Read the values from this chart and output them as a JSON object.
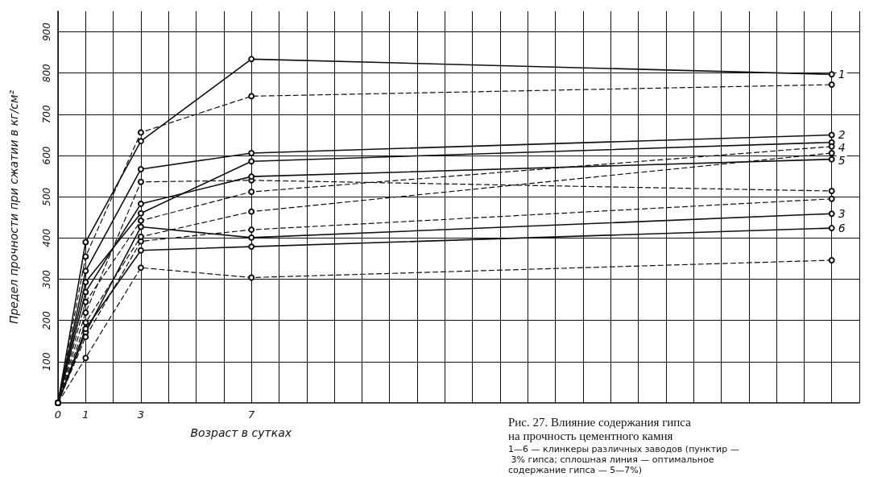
{
  "chart_data": {
    "type": "line",
    "title": "Рис. 27. Влияние содержания гипса на прочность цементного камня",
    "subtitle": "1—6 — клинкеры различных заводов (пунктир — 3% гипса; сплошная линия — оптимальное содержание гипса — 5—7%)",
    "xlabel": "Возраст в сутках",
    "ylabel": "Предел прочности при сжатии в кг/см²",
    "x": [
      0,
      1,
      3,
      7,
      28
    ],
    "xlim": [
      0,
      29
    ],
    "xticks": [
      0,
      1,
      {
        "value": 2,
        "label": null
      },
      3,
      {
        "value": 4,
        "label": null
      },
      {
        "value": 5,
        "label": null
      },
      {
        "value": 6,
        "label": null
      },
      7,
      {
        "value": 8,
        "label": null
      },
      {
        "value": 9,
        "label": null
      },
      {
        "value": 10,
        "label": null
      },
      {
        "value": 11,
        "label": null
      },
      {
        "value": 12,
        "label": null
      },
      {
        "value": 13,
        "label": null
      },
      {
        "value": 14,
        "label": null
      },
      {
        "value": 15,
        "label": null
      },
      {
        "value": 16,
        "label": null
      },
      {
        "value": 17,
        "label": null
      },
      {
        "value": 18,
        "label": null
      },
      {
        "value": 19,
        "label": null
      },
      {
        "value": 20,
        "label": null
      },
      {
        "value": 21,
        "label": null
      },
      {
        "value": 22,
        "label": null
      },
      {
        "value": 23,
        "label": null
      },
      {
        "value": 24,
        "label": null
      },
      {
        "value": 25,
        "label": null
      },
      {
        "value": 26,
        "label": null
      },
      {
        "value": 27,
        "label": null
      },
      {
        "value": 28,
        "label": null
      },
      {
        "value": 29,
        "label": null
      }
    ],
    "ylim": [
      0,
      950
    ],
    "yticks": [
      100,
      200,
      300,
      400,
      500,
      600,
      700,
      800,
      900
    ],
    "grid": true,
    "marker": "circle",
    "series": [
      {
        "name": "1",
        "color": "#111111",
        "line_style": "solid",
        "values": [
          0,
          390,
          635,
          834,
          797
        ]
      },
      {
        "color": "#111111",
        "line_style": "dashed",
        "values": [
          0,
          355,
          656,
          744,
          772
        ]
      },
      {
        "name": "2",
        "color": "#111111",
        "line_style": "solid",
        "values": [
          0,
          320,
          567,
          606,
          650
        ]
      },
      {
        "color": "#111111",
        "line_style": "dashed",
        "values": [
          0,
          219,
          536,
          540,
          514
        ]
      },
      {
        "name": "3",
        "color": "#111111",
        "line_style": "solid",
        "values": [
          0,
          171,
          427,
          401,
          459
        ]
      },
      {
        "color": "#111111",
        "line_style": "dashed",
        "values": [
          0,
          160,
          392,
          420,
          495
        ]
      },
      {
        "name": "4",
        "color": "#111111",
        "line_style": "solid",
        "values": [
          0,
          293,
          460,
          586,
          632
        ]
      },
      {
        "color": "#111111",
        "line_style": "dashed",
        "values": [
          0,
          245,
          442,
          512,
          622
        ]
      },
      {
        "name": "5",
        "color": "#111111",
        "line_style": "solid",
        "values": [
          0,
          269,
          483,
          549,
          591
        ]
      },
      {
        "color": "#111111",
        "line_style": "dashed",
        "values": [
          0,
          195,
          403,
          464,
          606
        ]
      },
      {
        "name": "6",
        "color": "#111111",
        "line_style": "solid",
        "values": [
          0,
          180,
          370,
          379,
          424
        ]
      },
      {
        "color": "#111111",
        "line_style": "dashed",
        "values": [
          0,
          109,
          328,
          304,
          346
        ]
      }
    ]
  }
}
